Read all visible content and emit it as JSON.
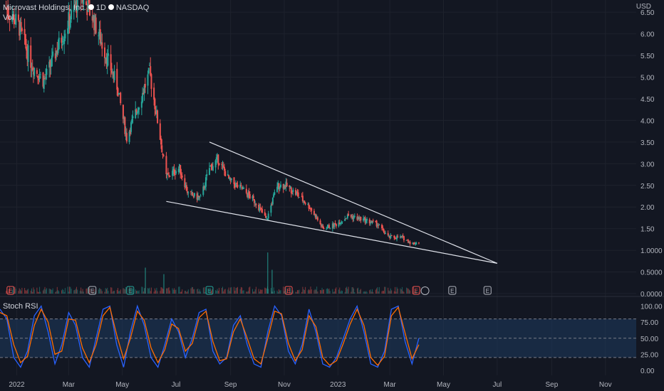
{
  "legend": {
    "name": "Microvast Holdings, Inc.",
    "interval": "1D",
    "exchange": "NASDAQ",
    "volume_label": "Vol"
  },
  "currency": "USD",
  "colors": {
    "up": "#26a69a",
    "down": "#ef5350",
    "background": "#131722",
    "grid": "#1e222d",
    "stoch_k": "#2962ff",
    "stoch_d": "#ff6d00",
    "band": "#1e3a5f",
    "trendline": "#e0e3eb"
  },
  "chart_data": [
    {
      "type": "candlestick",
      "title": "Microvast Holdings, Inc., 1D, NASDAQ",
      "y_axis": {
        "ticks": [
          "0.0000",
          "0.5000",
          "1.0000",
          "1.50",
          "2.00",
          "2.50",
          "3.00",
          "3.50",
          "4.00",
          "4.50",
          "5.00",
          "5.50",
          "6.00",
          "6.50"
        ],
        "min": 0,
        "max": 6.7
      },
      "x_axis": {
        "ticks": [
          "2022",
          "Mar",
          "May",
          "Jul",
          "Sep",
          "Nov",
          "2023",
          "Mar",
          "May",
          "Jul",
          "Sep",
          "Nov"
        ]
      },
      "close_path": [
        [
          "2021-12-20",
          6.6
        ],
        [
          "2022-01-03",
          6.2
        ],
        [
          "2022-01-18",
          5.3
        ],
        [
          "2022-02-01",
          4.9
        ],
        [
          "2022-02-15",
          5.6
        ],
        [
          "2022-03-01",
          6.3
        ],
        [
          "2022-03-15",
          6.9
        ],
        [
          "2022-03-28",
          6.4
        ],
        [
          "2022-04-11",
          5.6
        ],
        [
          "2022-04-25",
          4.8
        ],
        [
          "2022-05-06",
          3.6
        ],
        [
          "2022-05-20",
          4.4
        ],
        [
          "2022-06-01",
          5.1
        ],
        [
          "2022-06-10",
          4.0
        ],
        [
          "2022-06-20",
          2.7
        ],
        [
          "2022-07-05",
          2.9
        ],
        [
          "2022-07-15",
          2.3
        ],
        [
          "2022-07-29",
          2.2
        ],
        [
          "2022-08-08",
          2.9
        ],
        [
          "2022-08-18",
          3.1
        ],
        [
          "2022-08-31",
          2.6
        ],
        [
          "2022-09-15",
          2.4
        ],
        [
          "2022-09-30",
          2.1
        ],
        [
          "2022-10-12",
          1.7
        ],
        [
          "2022-10-24",
          2.5
        ],
        [
          "2022-11-03",
          2.5
        ],
        [
          "2022-11-15",
          2.3
        ],
        [
          "2022-11-30",
          2.0
        ],
        [
          "2022-12-15",
          1.5
        ],
        [
          "2022-12-30",
          1.6
        ],
        [
          "2023-01-13",
          1.8
        ],
        [
          "2023-01-31",
          1.7
        ],
        [
          "2023-02-15",
          1.6
        ],
        [
          "2023-02-28",
          1.3
        ],
        [
          "2023-03-15",
          1.3
        ],
        [
          "2023-03-27",
          1.15
        ],
        [
          "2023-04-03",
          1.2
        ]
      ],
      "volume_spikes": [
        [
          "2022-05-27",
          0.6
        ],
        [
          "2022-06-17",
          0.45
        ],
        [
          "2022-10-13",
          0.95
        ],
        [
          "2022-10-18",
          0.55
        ]
      ],
      "trendlines": [
        {
          "from": [
            "2022-08-08",
            3.5
          ],
          "to": [
            "2023-07-01",
            0.7
          ]
        },
        {
          "from": [
            "2022-06-20",
            2.13
          ],
          "to": [
            "2023-07-01",
            0.7
          ]
        }
      ],
      "earnings_markers": [
        "2021-12-25",
        "2022-03-28",
        "2022-05-10",
        "2022-08-08",
        "2022-11-06",
        "2023-03-31",
        "2023-05-11",
        "2023-06-20"
      ]
    },
    {
      "type": "line",
      "title": "Stoch RSI",
      "y_axis": {
        "ticks": [
          "0.00",
          "25.00",
          "50.00",
          "75.00",
          "100.00"
        ],
        "min": 0,
        "max": 100
      },
      "bands": {
        "upper": 80,
        "middle": 50,
        "lower": 20
      },
      "series": [
        {
          "name": "K",
          "color": "#2962ff",
          "values": [
            95,
            80,
            20,
            5,
            30,
            85,
            100,
            60,
            10,
            40,
            90,
            70,
            20,
            5,
            50,
            95,
            100,
            40,
            5,
            60,
            100,
            70,
            20,
            5,
            40,
            80,
            60,
            20,
            50,
            90,
            95,
            30,
            10,
            20,
            70,
            85,
            40,
            10,
            5,
            60,
            100,
            85,
            30,
            10,
            40,
            95,
            60,
            10,
            5,
            20,
            50,
            80,
            100,
            60,
            10,
            5,
            30,
            95,
            100,
            45,
            10,
            50
          ]
        },
        {
          "name": "D",
          "color": "#ff6d00",
          "values": [
            90,
            85,
            40,
            12,
            22,
            70,
            95,
            75,
            25,
            30,
            80,
            78,
            35,
            12,
            40,
            85,
            98,
            55,
            18,
            50,
            92,
            78,
            35,
            12,
            32,
            72,
            65,
            30,
            42,
            82,
            92,
            45,
            15,
            18,
            60,
            80,
            50,
            18,
            10,
            50,
            92,
            88,
            42,
            15,
            32,
            85,
            68,
            20,
            8,
            15,
            42,
            72,
            95,
            70,
            20,
            8,
            22,
            85,
            98,
            58,
            18,
            40
          ]
        }
      ]
    }
  ]
}
